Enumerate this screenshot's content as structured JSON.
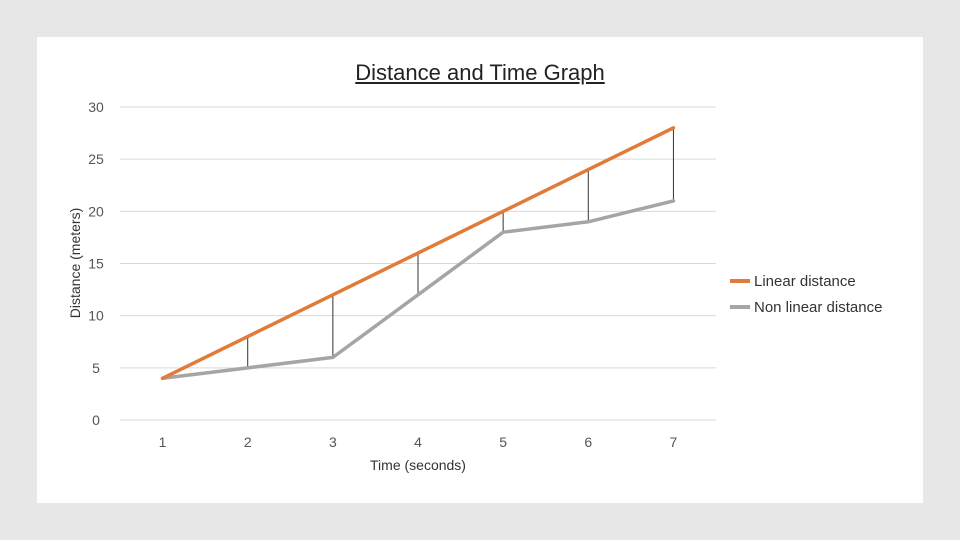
{
  "chart_data": {
    "type": "line",
    "title": "Distance and Time Graph",
    "xlabel": "Time (seconds)",
    "ylabel": "Distance (meters)",
    "categories": [
      "1",
      "2",
      "3",
      "4",
      "5",
      "6",
      "7"
    ],
    "ylim": [
      0,
      30
    ],
    "yticks": [
      "0",
      "5",
      "10",
      "15",
      "20",
      "25",
      "30"
    ],
    "grid": true,
    "legend_position": "right",
    "series": [
      {
        "name": "Linear distance",
        "color": "#e07b39",
        "values": [
          4,
          8,
          12,
          16,
          20,
          24,
          28
        ]
      },
      {
        "name": "Non linear distance",
        "color": "#a5a5a5",
        "values": [
          4,
          5,
          6,
          12,
          18,
          19,
          21
        ]
      }
    ]
  }
}
